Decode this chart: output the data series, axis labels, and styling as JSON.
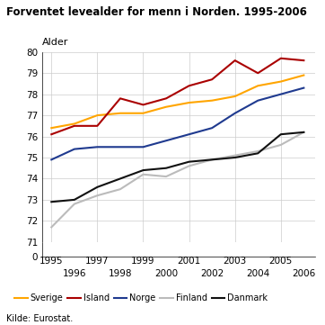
{
  "title": "Forventet levealder for menn i Norden. 1995-2006",
  "ylabel": "Alder",
  "source": "Kilde: Eurostat.",
  "years": [
    1995,
    1996,
    1997,
    1998,
    1999,
    2000,
    2001,
    2002,
    2003,
    2004,
    2005,
    2006
  ],
  "series": {
    "Sverige": {
      "color": "#FFA500",
      "values": [
        76.4,
        76.6,
        77.0,
        77.1,
        77.1,
        77.4,
        77.6,
        77.7,
        77.9,
        78.4,
        78.6,
        78.9
      ]
    },
    "Island": {
      "color": "#AA0000",
      "values": [
        76.1,
        76.5,
        76.5,
        77.8,
        77.5,
        77.8,
        78.4,
        78.7,
        79.6,
        79.0,
        79.7,
        79.6
      ]
    },
    "Norge": {
      "color": "#1F3A8F",
      "values": [
        74.9,
        75.4,
        75.5,
        75.5,
        75.5,
        75.8,
        76.1,
        76.4,
        77.1,
        77.7,
        78.0,
        78.3
      ]
    },
    "Finland": {
      "color": "#BBBBBB",
      "values": [
        71.7,
        72.8,
        73.2,
        73.5,
        74.2,
        74.1,
        74.6,
        74.9,
        75.1,
        75.3,
        75.6,
        76.2
      ]
    },
    "Danmark": {
      "color": "#111111",
      "values": [
        72.9,
        73.0,
        73.6,
        74.0,
        74.4,
        74.5,
        74.8,
        74.9,
        75.0,
        75.2,
        76.1,
        76.2
      ]
    }
  },
  "xlim": [
    1994.6,
    2006.5
  ],
  "ylim_main": [
    71.0,
    80.0
  ],
  "ylim_zero": [
    0,
    0.5
  ],
  "yticks_main": [
    71,
    72,
    73,
    74,
    75,
    76,
    77,
    78,
    79,
    80
  ],
  "yticks_zero": [
    0
  ],
  "bg_color": "#FFFFFF",
  "grid_color": "#CCCCCC"
}
